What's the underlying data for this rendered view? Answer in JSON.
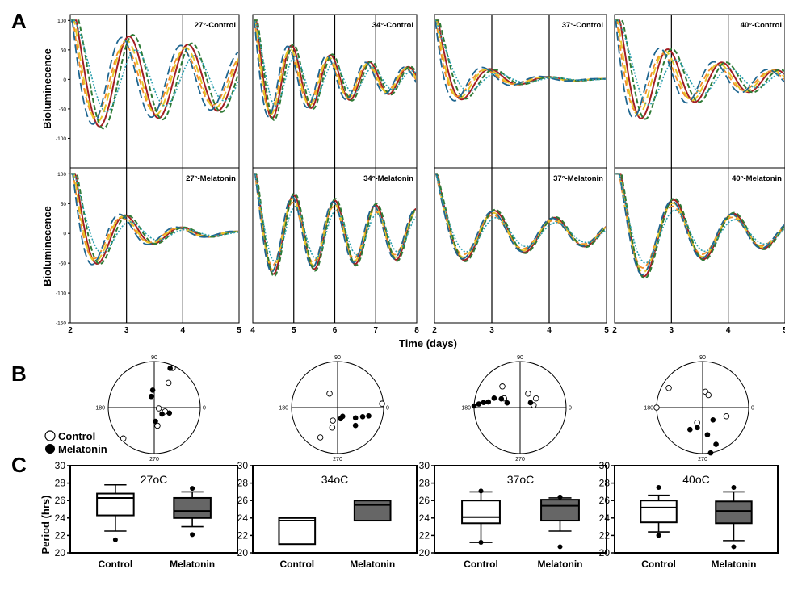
{
  "figure": {
    "panel_labels": {
      "A": "A",
      "B": "B",
      "C": "C"
    }
  },
  "colors": {
    "red": "#a31e23",
    "orange": "#f28c28",
    "yellow": "#e8c62a",
    "green": "#2e7b36",
    "blue": "#1f6690",
    "teal": "#2a9fae",
    "box_fill_control": "#ffffff",
    "box_fill_melatonin": "#666666"
  },
  "legend_b": {
    "control": {
      "label": "Control",
      "marker": "open-circle"
    },
    "melatonin": {
      "label": "Melatonin",
      "marker": "filled-circle"
    }
  },
  "chart_data": [
    {
      "id": "A",
      "type": "line",
      "ylabel": "Bioluminecence",
      "xlabel": "Time (days)",
      "ylim": [
        -150,
        110
      ],
      "yticks": [
        100,
        50,
        0,
        -50,
        -100,
        -150
      ],
      "vertical_lines": "at each integer day",
      "panels": [
        {
          "title": "27°-Control",
          "xlim": [
            2,
            5
          ],
          "xticks": [
            "2",
            "3",
            "4",
            "5"
          ],
          "shape": "damped",
          "period": 1.05,
          "damp": 0.2,
          "amp": 90,
          "spread": 0.45,
          "neg": true
        },
        {
          "title": "34°-Control",
          "xlim": [
            4,
            8
          ],
          "xticks": [
            "4",
            "5",
            "6",
            "7",
            "8"
          ],
          "shape": "damped",
          "period": 0.95,
          "damp": 0.35,
          "amp": 80,
          "spread": 0.35,
          "neg": true
        },
        {
          "title": "37°-Control",
          "xlim": [
            2,
            5
          ],
          "xticks": [
            "2",
            "3",
            "4",
            "5"
          ],
          "shape": "damped",
          "period": 1.0,
          "damp": 1.4,
          "amp": 70,
          "spread": 0.5,
          "neg": true
        },
        {
          "title": "40°-Control",
          "xlim": [
            2,
            5
          ],
          "xticks": [
            "2",
            "3",
            "4",
            "5"
          ],
          "shape": "damped",
          "period": 0.95,
          "damp": 0.6,
          "amp": 90,
          "spread": 0.55,
          "neg": true
        },
        {
          "title": "27°-Melatonin",
          "xlim": [
            2,
            5
          ],
          "xticks": [
            "2",
            "3",
            "4",
            "5"
          ],
          "shape": "damped",
          "period": 1.0,
          "damp": 1.1,
          "amp": 90,
          "spread": 0.35,
          "neg": true
        },
        {
          "title": "34°-Melatonin",
          "xlim": [
            4,
            8
          ],
          "xticks": [
            "4",
            "5",
            "6",
            "7",
            "8"
          ],
          "shape": "damped",
          "period": 1.0,
          "damp": 0.15,
          "amp": 75,
          "spread": 0.15,
          "neg": true
        },
        {
          "title": "37°-Melatonin",
          "xlim": [
            2,
            5
          ],
          "xticks": [
            "2",
            "3",
            "4",
            "5"
          ],
          "shape": "damped",
          "period": 1.05,
          "damp": 0.35,
          "amp": 55,
          "spread": 0.12,
          "neg": true
        },
        {
          "title": "40°-Melatonin",
          "xlim": [
            2,
            5
          ],
          "xticks": [
            "2",
            "3",
            "4",
            "5"
          ],
          "shape": "damped",
          "period": 1.05,
          "damp": 0.5,
          "amp": 95,
          "spread": 0.1,
          "neg": true
        }
      ]
    },
    {
      "id": "B",
      "type": "scatter",
      "coordinate": "polar (phase, degrees)",
      "axis_labels": {
        "top": "90",
        "left": "180",
        "bottom": "270",
        "right": "0"
      },
      "plots": [
        {
          "control": [
            [
              65,
              0.95
            ],
            [
              60,
              0.62
            ],
            [
              -20,
              0.25
            ],
            [
              -10,
              0.1
            ],
            [
              -80,
              0.4
            ],
            [
              -135,
              0.95
            ]
          ],
          "melatonin": [
            [
              68,
              0.92
            ],
            [
              95,
              0.38
            ],
            [
              105,
              0.25
            ],
            [
              -40,
              0.22
            ],
            [
              -85,
              0.3
            ],
            [
              -20,
              0.35
            ]
          ]
        },
        {
          "control": [
            [
              120,
              0.35
            ],
            [
              -120,
              0.75
            ],
            [
              -105,
              0.45
            ],
            [
              -110,
              0.3
            ],
            [
              5,
              0.97
            ]
          ],
          "melatonin": [
            [
              -30,
              0.45
            ],
            [
              -15,
              0.7
            ],
            [
              -20,
              0.58
            ],
            [
              -60,
              0.22
            ],
            [
              -75,
              0.25
            ],
            [
              -45,
              0.55
            ]
          ]
        },
        {
          "control": [
            [
              130,
              0.6
            ],
            [
              60,
              0.35
            ],
            [
              30,
              0.4
            ],
            [
              10,
              0.3
            ],
            [
              150,
              0.4
            ]
          ],
          "melatonin": [
            [
              160,
              0.6
            ],
            [
              155,
              0.45
            ],
            [
              160,
              0.3
            ],
            [
              175,
              0.9
            ],
            [
              178,
              1.0
            ],
            [
              172,
              0.8
            ],
            [
              170,
              0.7
            ],
            [
              25,
              0.25
            ]
          ]
        },
        {
          "control": [
            [
              150,
              0.85
            ],
            [
              180,
              1.0
            ],
            [
              80,
              0.35
            ],
            [
              65,
              0.3
            ],
            [
              -20,
              0.55
            ],
            [
              -110,
              0.35
            ]
          ],
          "melatonin": [
            [
              -120,
              0.55
            ],
            [
              -105,
              0.45
            ],
            [
              -80,
              0.6
            ],
            [
              -80,
              1.0
            ],
            [
              -70,
              0.85
            ],
            [
              -50,
              0.35
            ]
          ]
        }
      ]
    },
    {
      "id": "C",
      "type": "box",
      "ylabel": "Period (hrs)",
      "ylim": [
        20,
        30
      ],
      "yticks": [
        20,
        22,
        24,
        26,
        28,
        30
      ],
      "categories": [
        "Control",
        "Melatonin"
      ],
      "panels": [
        {
          "title": "27oC",
          "boxes": [
            {
              "q1": 24.3,
              "median": 26.3,
              "q3": 26.8,
              "whisker_low": 22.5,
              "whisker_high": 27.8,
              "outliers": [
                21.5
              ]
            },
            {
              "q1": 24.0,
              "median": 24.8,
              "q3": 26.3,
              "whisker_low": 23.0,
              "whisker_high": 27.0,
              "outliers": [
                22.1,
                27.4
              ]
            }
          ]
        },
        {
          "title": "34oC",
          "boxes": [
            {
              "q1": 21.0,
              "median": 23.7,
              "q3": 24.0,
              "whisker_low": null,
              "whisker_high": null,
              "outliers": []
            },
            {
              "q1": 23.7,
              "median": 25.5,
              "q3": 26.0,
              "whisker_low": null,
              "whisker_high": null,
              "outliers": []
            }
          ]
        },
        {
          "title": "37oC",
          "boxes": [
            {
              "q1": 23.4,
              "median": 24.1,
              "q3": 26.0,
              "whisker_low": 21.2,
              "whisker_high": 27.0,
              "outliers": [
                21.2,
                27.1
              ]
            },
            {
              "q1": 23.7,
              "median": 25.4,
              "q3": 26.1,
              "whisker_low": 22.5,
              "whisker_high": 26.3,
              "outliers": [
                20.7,
                26.4
              ]
            }
          ]
        },
        {
          "title": "40oC",
          "boxes": [
            {
              "q1": 23.5,
              "median": 25.2,
              "q3": 26.0,
              "whisker_low": 22.4,
              "whisker_high": 26.6,
              "outliers": [
                22.0,
                27.5
              ]
            },
            {
              "q1": 23.4,
              "median": 24.8,
              "q3": 25.9,
              "whisker_low": 21.4,
              "whisker_high": 27.0,
              "outliers": [
                20.7,
                27.5
              ]
            }
          ]
        }
      ]
    }
  ]
}
